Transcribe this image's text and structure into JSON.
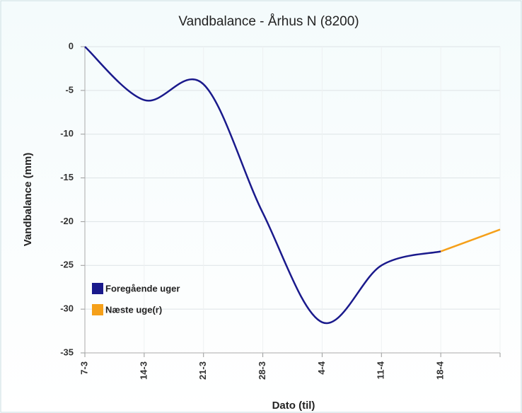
{
  "chart_data": {
    "type": "line",
    "title": "Vandbalance - Århus N (8200)",
    "x_label": "Dato (til)",
    "y_label": "Vandbalance (mm)",
    "categories": [
      "7-3",
      "14-3",
      "21-3",
      "28-3",
      "4-4",
      "11-4",
      "18-4",
      null
    ],
    "series": [
      {
        "name": "Foregående uger",
        "color": "#1a1a8c",
        "values": [
          0,
          -6.1,
          -4.3,
          -19,
          -31.5,
          -25,
          -23.4,
          null
        ]
      },
      {
        "name": "Næste uge(r)",
        "color": "#f5a01a",
        "values": [
          null,
          null,
          null,
          null,
          null,
          null,
          -23.4,
          -20.9
        ]
      }
    ],
    "ylim": [
      -35,
      0
    ],
    "yticks": [
      0,
      -5,
      -10,
      -15,
      -20,
      -25,
      -30,
      -35
    ],
    "grid": true,
    "legend": "lower left"
  }
}
